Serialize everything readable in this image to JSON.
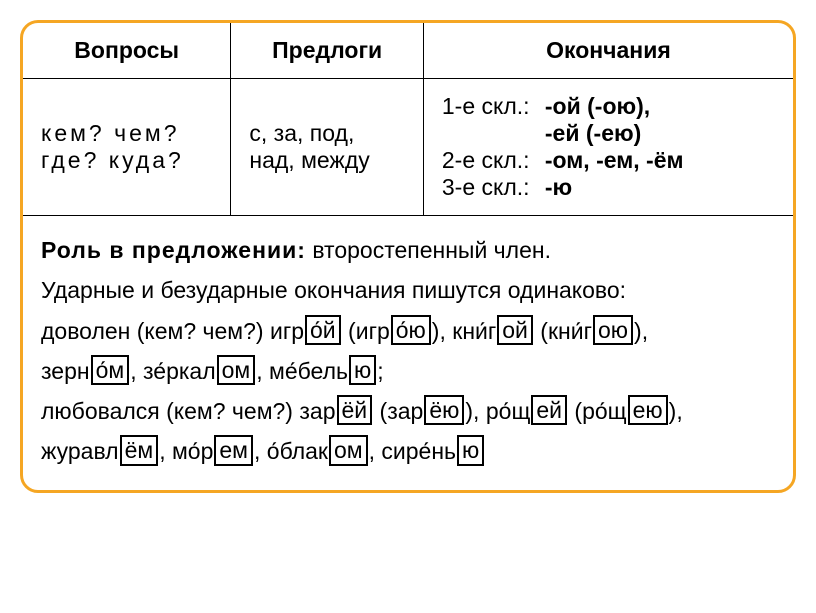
{
  "border_color": "#f5a623",
  "table": {
    "headers": [
      "Вопросы",
      "Предлоги",
      "Окончания"
    ],
    "questions": [
      "кем? чем?",
      "где? куда?"
    ],
    "prepositions": "с, за, под, над, между",
    "endings": [
      {
        "label": "1-е скл.:",
        "values": "-ой (-ою),\n-ей (-ею)"
      },
      {
        "label": "2-е скл.:",
        "values": "-ом, -ем, -ём"
      },
      {
        "label": "3-е скл.:",
        "values": "-ю"
      }
    ]
  },
  "body": {
    "role_label": "Роль в предложении:",
    "role_value": "второстепенный член.",
    "stress_rule": "Ударные и безударные окончания пишутся одинаково:",
    "line1_lead": "доволен (кем? чем?)",
    "line2_lead": "любовался (кем? чем?)",
    "words": {
      "igroy_stem": "игр",
      "igroy_accent": "о",
      "igroy_end": "й",
      "igroiu_stem": "игр",
      "igroiu_accent": "о",
      "igroiu_end": "ю",
      "knigoy_stem": "кн",
      "knigoy_accent2": "и",
      "knigoy_mid": "г",
      "knigoy_box": "ой",
      "knigoiu_stem": "кн",
      "knigoiu_accent2": "и",
      "knigoiu_mid": "г",
      "knigoiu_box": "ою",
      "zernom_stem": "зерн",
      "zernom_accent": "о",
      "zernom_end": "м",
      "zerkalom_stem": "з",
      "zerkalom_accent": "е",
      "zerkalom_mid": "ркал",
      "zerkalom_box": "ом",
      "mebelju_stem": "м",
      "mebelju_accent": "е",
      "mebelju_mid": "бель",
      "mebelju_box": "ю",
      "zarey_stem": "зар",
      "zarey_box": "ёй",
      "zareyu_stem": "зар",
      "zareyu_box": "ёю",
      "roshchey_stem": "р",
      "roshchey_accent": "о",
      "roshchey_mid": "щ",
      "roshchey_box": "ей",
      "roshcheyu_stem": "р",
      "roshcheyu_accent": "о",
      "roshcheyu_mid": "щ",
      "roshcheyu_box": "ею",
      "zhuravlem_stem": "журавл",
      "zhuravlem_box": "ём",
      "morem_stem": "м",
      "morem_accent": "о",
      "morem_mid": "р",
      "morem_box": "ем",
      "oblakom_stem": "",
      "oblakom_accent": "о",
      "oblakom_mid": "блак",
      "oblakom_box": "ом",
      "sirenju_stem": "сир",
      "sirenju_accent": "е",
      "sirenju_mid": "нь",
      "sirenju_box": "ю"
    }
  }
}
